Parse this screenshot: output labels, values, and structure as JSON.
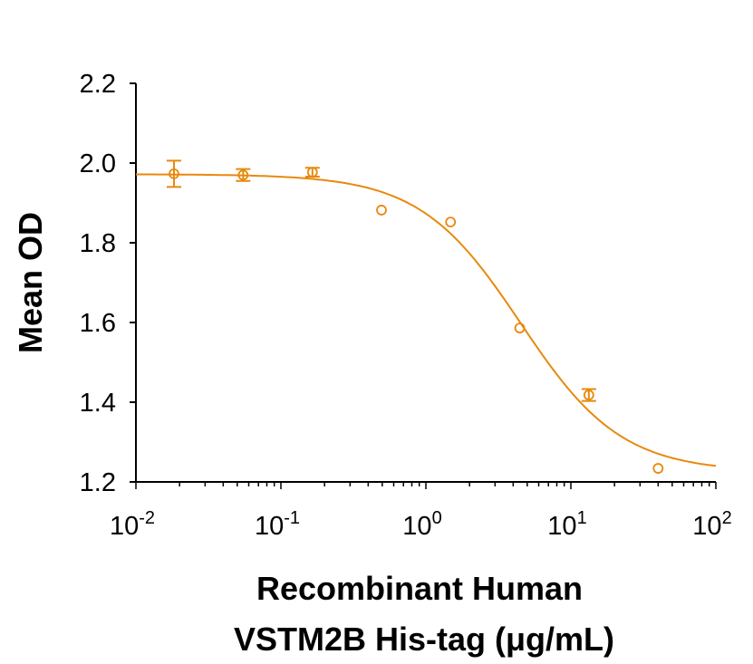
{
  "chart_data": {
    "type": "scatter",
    "xlabel_lines": [
      "Recombinant Human",
      "VSTM2B His-tag (μg/mL)"
    ],
    "ylabel": "Mean OD",
    "xscale": "log",
    "xlim": [
      0.01,
      100
    ],
    "ylim": [
      1.2,
      2.2
    ],
    "x_ticks": [
      {
        "base": "10",
        "exp": "-2",
        "v": 0.01
      },
      {
        "base": "10",
        "exp": "-1",
        "v": 0.1
      },
      {
        "base": "10",
        "exp": "0",
        "v": 1
      },
      {
        "base": "10",
        "exp": "1",
        "v": 10
      },
      {
        "base": "10",
        "exp": "2",
        "v": 100
      }
    ],
    "y_ticks": [
      "1.2",
      "1.4",
      "1.6",
      "1.8",
      "2.0",
      "2.2"
    ],
    "grid": false,
    "color": "#E8890C",
    "points": [
      {
        "x": 0.0183,
        "y": 1.973,
        "err": 0.033
      },
      {
        "x": 0.0549,
        "y": 1.97,
        "err": 0.015
      },
      {
        "x": 0.165,
        "y": 1.977,
        "err": 0.011
      },
      {
        "x": 0.494,
        "y": 1.882,
        "err": 0
      },
      {
        "x": 1.48,
        "y": 1.852,
        "err": 0
      },
      {
        "x": 4.44,
        "y": 1.586,
        "err": 0
      },
      {
        "x": 13.3,
        "y": 1.418,
        "err": 0.015
      },
      {
        "x": 40,
        "y": 1.234,
        "err": 0
      }
    ],
    "fit": {
      "model": "4PL",
      "top": 1.972,
      "bottom": 1.225,
      "ec50": 4.5,
      "hill": 1.25
    }
  }
}
